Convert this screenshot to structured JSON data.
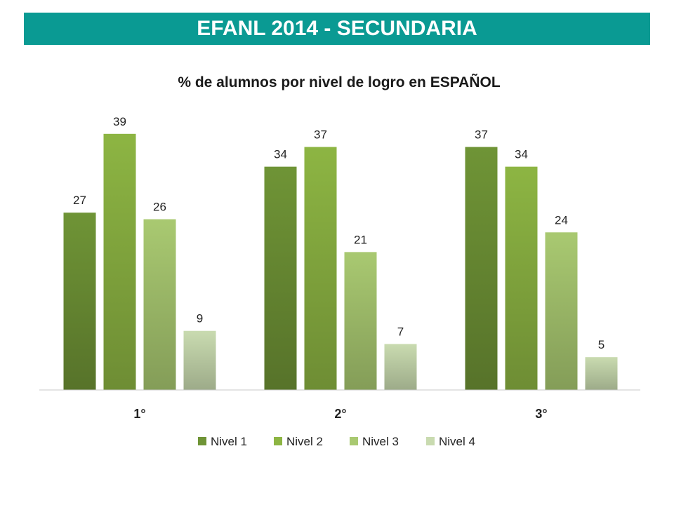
{
  "banner": {
    "title": "EFANL 2014 - SECUNDARIA"
  },
  "chart_data": {
    "type": "bar",
    "title": "% de alumnos por nivel de logro en ESPAÑOL",
    "categories": [
      "1°",
      "2°",
      "3°"
    ],
    "series": [
      {
        "name": "Nivel 1",
        "values": [
          27,
          34,
          37
        ],
        "color": "#6f9436"
      },
      {
        "name": "Nivel 2",
        "values": [
          39,
          37,
          34
        ],
        "color": "#8db543"
      },
      {
        "name": "Nivel 3",
        "values": [
          26,
          21,
          24
        ],
        "color": "#a9c971"
      },
      {
        "name": "Nivel 4",
        "values": [
          9,
          7,
          5
        ],
        "color": "#c9dbb0"
      }
    ],
    "ylim": [
      0,
      44
    ],
    "grid": false,
    "legend_position": "bottom"
  }
}
